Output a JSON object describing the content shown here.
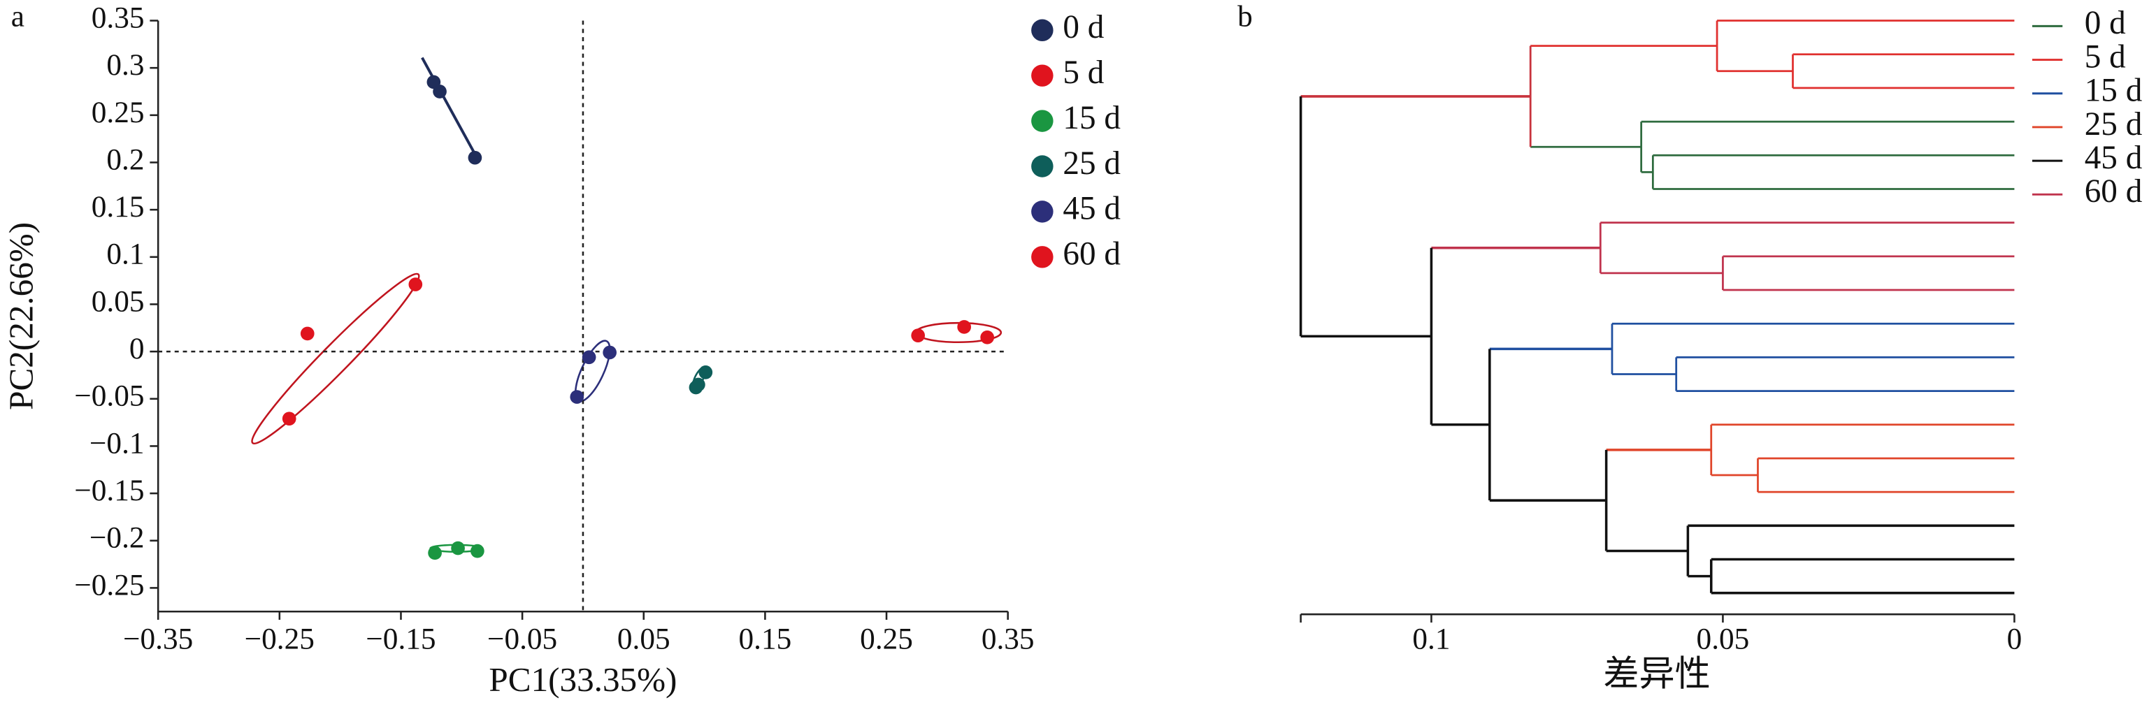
{
  "chart_data": [
    {
      "type": "scatter",
      "panel": "a",
      "xlabel": "PC1(33.35%)",
      "ylabel": "PC2(22.66%)",
      "xlim": [
        -0.35,
        0.35
      ],
      "ylim": [
        -0.275,
        0.35
      ],
      "xticks": [
        {
          "value": -0.35,
          "label": "−0.35"
        },
        {
          "value": -0.25,
          "label": "−0.25"
        },
        {
          "value": -0.15,
          "label": "−0.15"
        },
        {
          "value": -0.05,
          "label": "−0.05"
        },
        0.05,
        0.15,
        0.25,
        0.35
      ],
      "yticks": [
        0.35,
        0.3,
        0.25,
        0.2,
        0.15,
        0.1,
        0.05,
        0,
        {
          "value": -0.05,
          "label": "−0.05"
        },
        {
          "value": -0.1,
          "label": "−0.1"
        },
        {
          "value": -0.15,
          "label": "−0.15"
        },
        {
          "value": -0.2,
          "label": "−0.2"
        },
        {
          "value": -0.25,
          "label": "−0.25"
        }
      ],
      "series": [
        {
          "name": "0 d",
          "color": "#1f2d5a",
          "x": [
            -0.123,
            -0.118,
            -0.089
          ],
          "values": [
            0.285,
            0.275,
            0.205
          ]
        },
        {
          "name": "5 d",
          "color": "#e0141e",
          "x": [
            -0.138,
            -0.227,
            -0.242
          ],
          "values": [
            0.071,
            0.019,
            -0.071
          ]
        },
        {
          "name": "15 d",
          "color": "#1a9641",
          "x": [
            -0.122,
            -0.103,
            -0.087
          ],
          "values": [
            -0.213,
            -0.208,
            -0.211
          ]
        },
        {
          "name": "25 d",
          "color": "#0e5e5a",
          "x": [
            0.101,
            0.095,
            0.093
          ],
          "values": [
            -0.022,
            -0.035,
            -0.038
          ]
        },
        {
          "name": "45 d",
          "color": "#2c2f7a",
          "x": [
            0.005,
            0.022,
            -0.005
          ],
          "values": [
            -0.006,
            -0.001,
            -0.048
          ]
        },
        {
          "name": "60 d",
          "color": "#e0141e",
          "x": [
            0.276,
            0.314,
            0.333
          ],
          "values": [
            0.017,
            0.026,
            0.015
          ]
        }
      ]
    },
    {
      "type": "dendrogram",
      "panel": "b",
      "xlabel": "差异性",
      "xlim": [
        0,
        0.1224
      ],
      "xticks": [
        0.1,
        0.05,
        0
      ],
      "leaves": [
        null,
        null,
        null,
        null,
        null,
        null,
        null,
        null,
        null,
        null,
        null,
        null,
        null,
        null,
        null,
        null,
        null,
        null
      ],
      "merges": [
        {
          "children": [
            1,
            2
          ],
          "height": 0.038,
          "color": "#e0302e"
        },
        {
          "children": [
            0,
            18
          ],
          "height": 0.051,
          "color": "#e0302e"
        },
        {
          "children": [
            4,
            5
          ],
          "height": 0.062,
          "color": "#2e6b3e"
        },
        {
          "children": [
            3,
            20
          ],
          "height": 0.064,
          "color": "#2e6b3e"
        },
        {
          "children": [
            19,
            21
          ],
          "height": 0.083,
          "color": "#c8323c"
        },
        {
          "children": [
            7,
            8
          ],
          "height": 0.05,
          "color": "#c0334d"
        },
        {
          "children": [
            6,
            23
          ],
          "height": 0.071,
          "color": "#c0334d"
        },
        {
          "children": [
            10,
            11
          ],
          "height": 0.058,
          "color": "#1f4fa0"
        },
        {
          "children": [
            9,
            25
          ],
          "height": 0.069,
          "color": "#1f4fa0"
        },
        {
          "children": [
            13,
            14
          ],
          "height": 0.044,
          "color": "#e0452a"
        },
        {
          "children": [
            12,
            27
          ],
          "height": 0.052,
          "color": "#e0452a"
        },
        {
          "children": [
            16,
            17
          ],
          "height": 0.052,
          "color": "#111111"
        },
        {
          "children": [
            15,
            29
          ],
          "height": 0.056,
          "color": "#111111"
        },
        {
          "children": [
            28,
            30
          ],
          "height": 0.07,
          "color": "#111111"
        },
        {
          "children": [
            26,
            31
          ],
          "height": 0.09,
          "color": "#111111"
        },
        {
          "children": [
            24,
            32
          ],
          "height": 0.1,
          "color": "#111111"
        },
        {
          "children": [
            22,
            33
          ],
          "height": 0.1224,
          "color": "#111111"
        }
      ],
      "series": [
        {
          "name": "0 d",
          "color": "#2e6b3e"
        },
        {
          "name": "5 d",
          "color": "#e0302e"
        },
        {
          "name": "15 d",
          "color": "#1f4fa0"
        },
        {
          "name": "25 d",
          "color": "#e0452a"
        },
        {
          "name": "45 d",
          "color": "#111111"
        },
        {
          "name": "60 d",
          "color": "#c0334d"
        }
      ]
    }
  ]
}
